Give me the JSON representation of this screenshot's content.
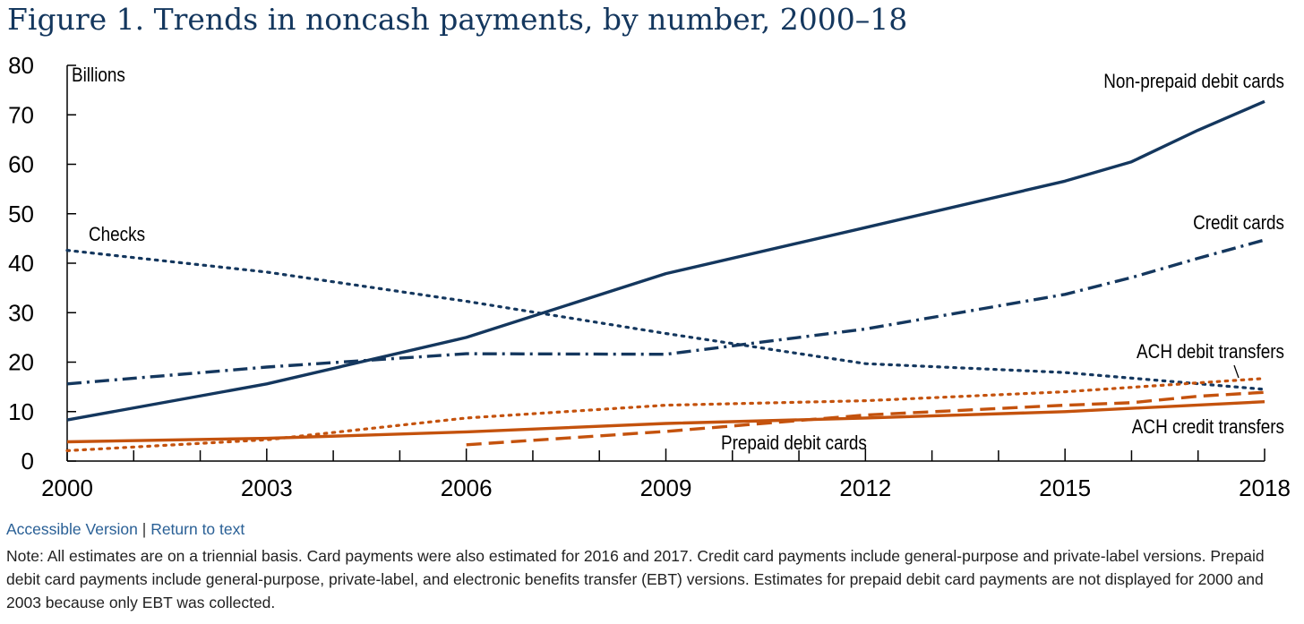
{
  "figure": {
    "title": "Figure 1. Trends in noncash payments, by number, 2000–18"
  },
  "links": {
    "accessible": "Accessible Version",
    "separator": "|",
    "return": "Return to text"
  },
  "note": "Note: All estimates are on a triennial basis. Card payments were also estimated for 2016 and 2017. Credit card payments include general-purpose and private-label versions. Prepaid debit card payments include general-purpose, private-label, and electronic benefits transfer (EBT) versions. Estimates for prepaid debit card payments are not displayed for 2000 and 2003 because only EBT was collected.",
  "colors": {
    "blue": "#14375e",
    "orange": "#c4520d",
    "title": "#14375e",
    "link": "#2a6096"
  },
  "chart_data": {
    "type": "line",
    "ylabel": "Billions",
    "xlim": [
      2000,
      2018
    ],
    "ylim": [
      0,
      80
    ],
    "xticks": [
      2000,
      2003,
      2006,
      2009,
      2012,
      2015,
      2018
    ],
    "yticks": [
      0,
      10,
      20,
      30,
      40,
      50,
      60,
      70,
      80
    ],
    "grid": false,
    "legend": "direct labels",
    "series": [
      {
        "name": "Non-prepaid debit cards",
        "color": "#14375e",
        "style": "solid",
        "points": [
          [
            2000,
            8.3
          ],
          [
            2003,
            15.6
          ],
          [
            2006,
            25.0
          ],
          [
            2009,
            37.9
          ],
          [
            2012,
            47.2
          ],
          [
            2015,
            56.6
          ],
          [
            2016,
            60.5
          ],
          [
            2017,
            66.9
          ],
          [
            2018,
            72.7
          ]
        ]
      },
      {
        "name": "Checks",
        "color": "#14375e",
        "style": "dotted",
        "points": [
          [
            2000,
            42.6
          ],
          [
            2003,
            38.2
          ],
          [
            2006,
            32.3
          ],
          [
            2009,
            25.8
          ],
          [
            2012,
            19.7
          ],
          [
            2015,
            17.9
          ],
          [
            2018,
            14.5
          ]
        ]
      },
      {
        "name": "Credit cards",
        "color": "#14375e",
        "style": "dashdot",
        "points": [
          [
            2000,
            15.6
          ],
          [
            2003,
            19.0
          ],
          [
            2006,
            21.7
          ],
          [
            2009,
            21.6
          ],
          [
            2012,
            26.7
          ],
          [
            2015,
            33.7
          ],
          [
            2016,
            37.1
          ],
          [
            2017,
            41.0
          ],
          [
            2018,
            44.7
          ]
        ]
      },
      {
        "name": "ACH debit transfers",
        "color": "#c4520d",
        "style": "dotted",
        "points": [
          [
            2000,
            2.1
          ],
          [
            2003,
            4.3
          ],
          [
            2006,
            8.7
          ],
          [
            2009,
            11.3
          ],
          [
            2012,
            12.2
          ],
          [
            2015,
            14.0
          ],
          [
            2018,
            16.7
          ]
        ]
      },
      {
        "name": "Prepaid debit cards",
        "color": "#c4520d",
        "style": "dashed",
        "points": [
          [
            2006,
            3.3
          ],
          [
            2009,
            6.0
          ],
          [
            2012,
            9.3
          ],
          [
            2015,
            11.3
          ],
          [
            2016,
            11.8
          ],
          [
            2017,
            13.1
          ],
          [
            2018,
            13.9
          ]
        ]
      },
      {
        "name": "ACH credit transfers",
        "color": "#c4520d",
        "style": "solid",
        "points": [
          [
            2000,
            3.9
          ],
          [
            2003,
            4.6
          ],
          [
            2006,
            5.9
          ],
          [
            2009,
            7.6
          ],
          [
            2012,
            8.7
          ],
          [
            2015,
            10.0
          ],
          [
            2018,
            12.0
          ]
        ]
      }
    ]
  }
}
